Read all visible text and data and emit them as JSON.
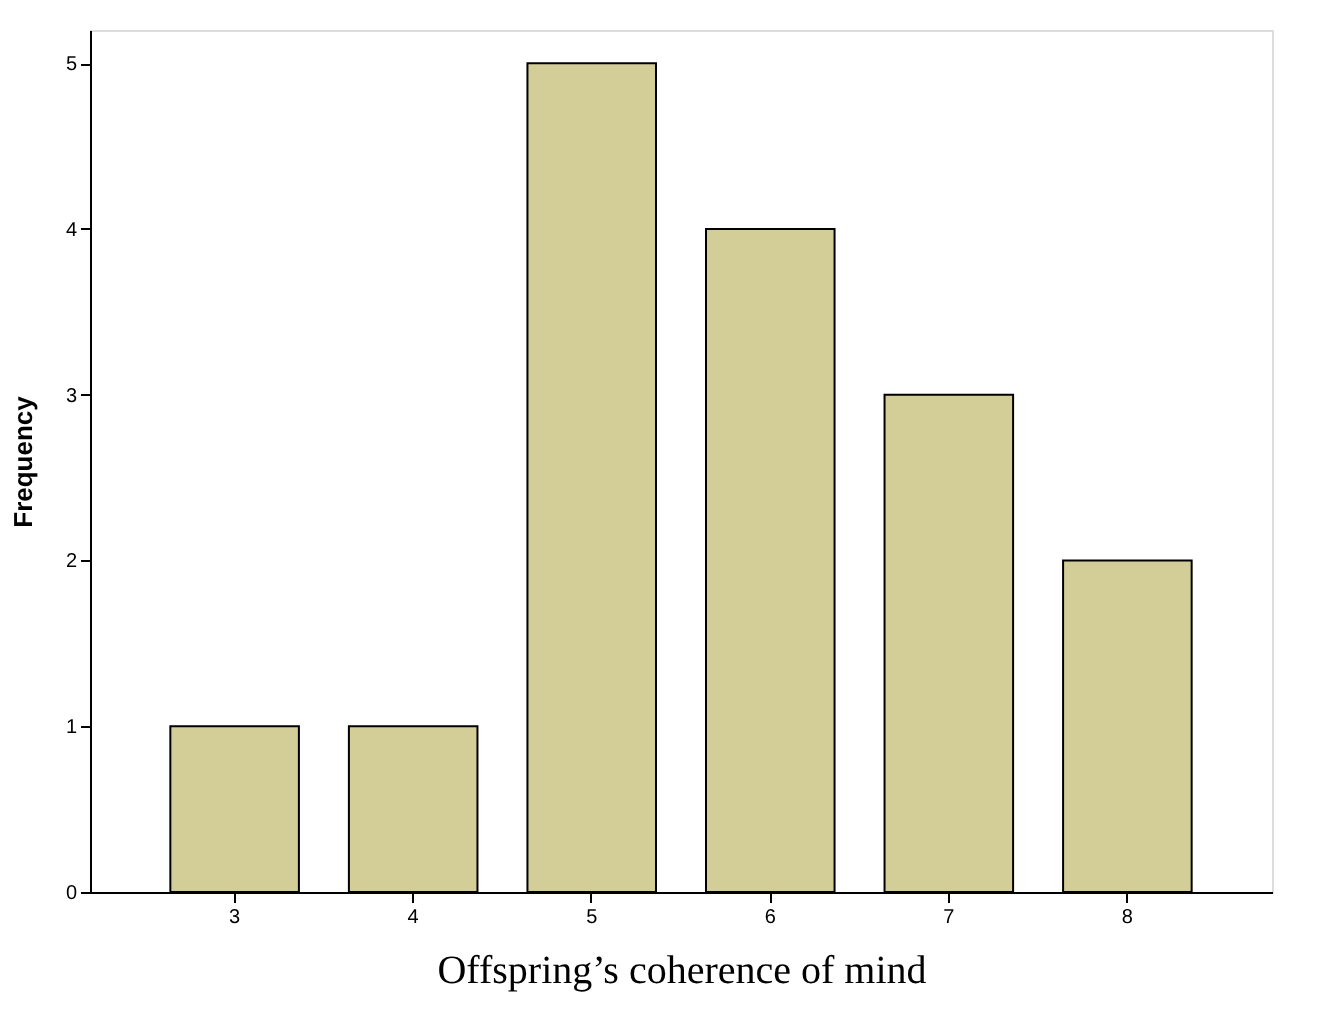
{
  "chart_data": {
    "type": "bar",
    "xlabel": "Offspring’s coherence of mind",
    "ylabel": "Frequency",
    "categories": [
      "3",
      "4",
      "5",
      "6",
      "7",
      "8"
    ],
    "values": [
      1,
      1,
      5,
      4,
      3,
      2
    ],
    "color": "#d3ce97",
    "ylim": [
      0,
      5.2
    ],
    "yticks": [
      0,
      1,
      2,
      3,
      4,
      5
    ],
    "grid": false
  }
}
